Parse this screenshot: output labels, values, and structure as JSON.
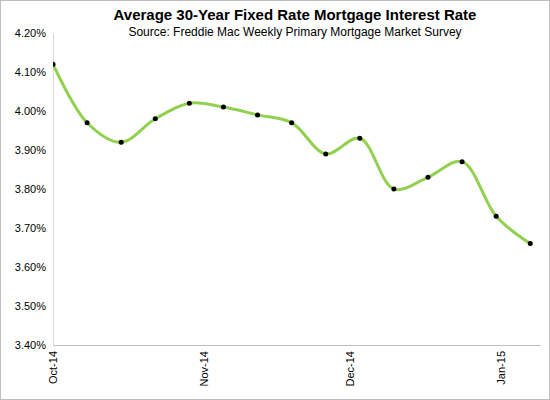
{
  "chart_data": {
    "type": "line",
    "title": "Average 30-Year Fixed Rate Mortgage Interest Rate",
    "subtitle": "Source: Freddie Mac Weekly Primary Mortgage Market Survey",
    "x": [
      0,
      7,
      14,
      21,
      28,
      35,
      42,
      49,
      56,
      63,
      70,
      77,
      84,
      91,
      98
    ],
    "values": [
      4.12,
      3.97,
      3.92,
      3.98,
      4.02,
      4.01,
      3.99,
      3.97,
      3.89,
      3.93,
      3.8,
      3.83,
      3.87,
      3.73,
      3.66
    ],
    "color": "#92d050",
    "marker": "circle",
    "line_style": "solid",
    "xlim": [
      0,
      100
    ],
    "xticks": [
      {
        "value": 0,
        "label": "Oct-14"
      },
      {
        "value": 31,
        "label": "Nov-14"
      },
      {
        "value": 61,
        "label": "Dec-14"
      },
      {
        "value": 92,
        "label": "Jan-15"
      }
    ],
    "ylim": [
      3.4,
      4.2
    ],
    "yticks": [
      {
        "value": 3.4,
        "label": "3.40%"
      },
      {
        "value": 3.5,
        "label": "3.50%"
      },
      {
        "value": 3.6,
        "label": "3.60%"
      },
      {
        "value": 3.7,
        "label": "3.70%"
      },
      {
        "value": 3.8,
        "label": "3.80%"
      },
      {
        "value": 3.9,
        "label": "3.90%"
      },
      {
        "value": 4.0,
        "label": "4.00%"
      },
      {
        "value": 4.1,
        "label": "4.10%"
      },
      {
        "value": 4.2,
        "label": "4.20%"
      }
    ],
    "grid": false
  }
}
